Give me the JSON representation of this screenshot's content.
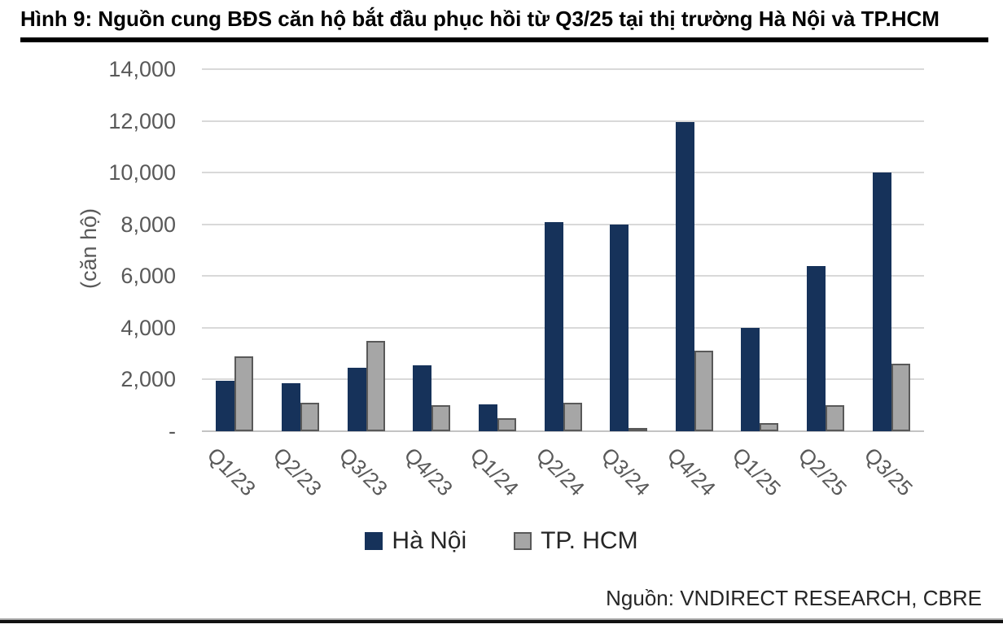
{
  "page": {
    "title": "Hình 9: Nguồn cung BĐS căn hộ bắt đầu phục hồi từ Q3/25 tại thị trường Hà Nội và TP.HCM",
    "source": "Nguồn: VNDIRECT RESEARCH, CBRE"
  },
  "chart_data": {
    "type": "bar",
    "title": "Hình 9: Nguồn cung BĐS căn hộ bắt đầu phục hồi từ Q3/25 tại thị trường Hà Nội và TP.HCM",
    "xlabel": "",
    "ylabel": "(căn hộ)",
    "ylim": [
      0,
      14000
    ],
    "ytick_interval": 2000,
    "ytick_labels": [
      "-",
      "2,000",
      "4,000",
      "6,000",
      "8,000",
      "10,000",
      "12,000",
      "14,000"
    ],
    "grid": true,
    "legend_position": "bottom",
    "categories": [
      "Q1/23",
      "Q2/23",
      "Q3/23",
      "Q4/23",
      "Q1/24",
      "Q2/24",
      "Q3/24",
      "Q4/24",
      "Q1/25",
      "Q2/25",
      "Q3/25"
    ],
    "series": [
      {
        "name": "Hà Nội",
        "color": "#16325a",
        "values": [
          1950,
          1850,
          2450,
          2550,
          1050,
          8100,
          8000,
          11950,
          4000,
          6400,
          10000
        ]
      },
      {
        "name": "TP. HCM",
        "color": "#a6a6a6",
        "border_color": "#595959",
        "values": [
          2900,
          1100,
          3500,
          1000,
          500,
          1100,
          120,
          3100,
          300,
          1000,
          2600
        ]
      }
    ]
  },
  "colors": {
    "hanoi_bar": "#16325a",
    "tphcm_bar_fill": "#a6a6a6",
    "tphcm_bar_border": "#595959",
    "gridline": "#d9d9d9",
    "axis_text": "#595959",
    "title_text": "#000000"
  }
}
